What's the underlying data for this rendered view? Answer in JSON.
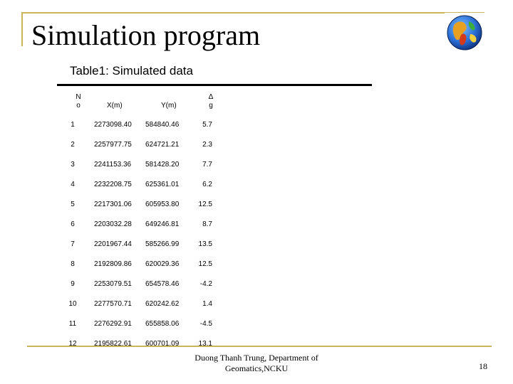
{
  "slide": {
    "title": "Simulation program",
    "footer_line1": "Duong Thanh Trung, Department of",
    "footer_line2": "Geomatics,NCKU",
    "page_number": "18",
    "accent_color": "#c9b55a",
    "icon": "globe-icon"
  },
  "table": {
    "caption": "Table1: Simulated data",
    "headers": {
      "no_line1": "N",
      "no_line2": "o",
      "x": "X(m)",
      "y": "Y(m)",
      "g_line1": "Δ",
      "g_line2": "g"
    },
    "rows": [
      {
        "no": "1",
        "x": "2273098.40",
        "y": "584840.46",
        "g": "5.7"
      },
      {
        "no": "2",
        "x": "2257977.75",
        "y": "624721.21",
        "g": "2.3"
      },
      {
        "no": "3",
        "x": "2241153.36",
        "y": "581428.20",
        "g": "7.7"
      },
      {
        "no": "4",
        "x": "2232208.75",
        "y": "625361.01",
        "g": "6.2"
      },
      {
        "no": "5",
        "x": "2217301.06",
        "y": "605953.80",
        "g": "12.5"
      },
      {
        "no": "6",
        "x": "2203032.28",
        "y": "649246.81",
        "g": "8.7"
      },
      {
        "no": "7",
        "x": "2201967.44",
        "y": "585266.99",
        "g": "13.5"
      },
      {
        "no": "8",
        "x": "2192809.86",
        "y": "620029.36",
        "g": "12.5"
      },
      {
        "no": "9",
        "x": "2253079.51",
        "y": "654578.46",
        "g": "-4.2"
      },
      {
        "no": "10",
        "x": "2277570.71",
        "y": "620242.62",
        "g": "1.4"
      },
      {
        "no": "11",
        "x": "2276292.91",
        "y": "655858.06",
        "g": "-4.5"
      },
      {
        "no": "12",
        "x": "2195822.61",
        "y": "600701.09",
        "g": "13.1"
      }
    ]
  }
}
